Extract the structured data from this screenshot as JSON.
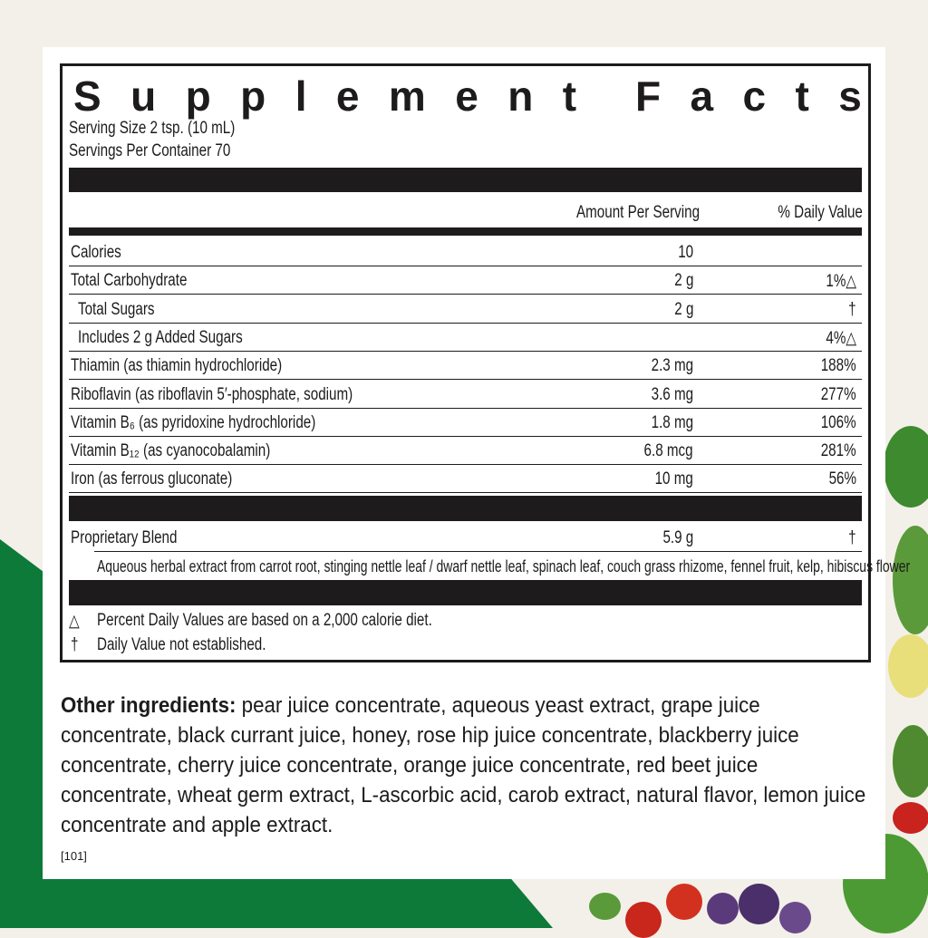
{
  "title": "Supplement Facts",
  "title_letters": [
    "S",
    "u",
    "p",
    "p",
    "l",
    "e",
    "m",
    "e",
    "n",
    "t",
    "",
    "F",
    "a",
    "c",
    "t",
    "s"
  ],
  "serving_size": "Serving Size 2 tsp. (10 mL)",
  "servings_per_container": "Servings Per Container 70",
  "header": {
    "amount": "Amount Per Serving",
    "dv": "% Daily Value"
  },
  "rows": [
    {
      "name": "Calories",
      "amount": "10",
      "dv": ""
    },
    {
      "name": "Total Carbohydrate",
      "amount": "2 g",
      "dv": "1%△"
    },
    {
      "name": "Total Sugars",
      "amount": "2 g",
      "dv": "†"
    },
    {
      "name": "Includes 2 g Added Sugars",
      "amount": "",
      "dv": "4%△"
    },
    {
      "name": "Thiamin (as thiamin hydrochloride)",
      "amount": "2.3 mg",
      "dv": "188%"
    },
    {
      "name": "Riboflavin (as riboflavin 5′-phosphate, sodium)",
      "amount": "3.6 mg",
      "dv": "277%"
    },
    {
      "name": "Vitamin B₆ (as pyridoxine hydrochloride)",
      "amount": "1.8 mg",
      "dv": "106%"
    },
    {
      "name": "Vitamin B₁₂ (as cyanocobalamin)",
      "amount": "6.8 mcg",
      "dv": "281%"
    },
    {
      "name": "Iron (as ferrous gluconate)",
      "amount": "10 mg",
      "dv": "56%"
    }
  ],
  "blend": {
    "name": "Proprietary Blend",
    "amount": "5.9 g",
    "dv": "†",
    "description": "Aqueous herbal extract from carrot root, stinging nettle leaf / dwarf nettle leaf, spinach leaf, couch grass rhizome, fennel fruit, kelp, hibiscus flower"
  },
  "footnotes": [
    {
      "symbol": "△",
      "text": "Percent Daily Values are based on a 2,000 calorie diet."
    },
    {
      "symbol": "†",
      "text": "Daily Value not established."
    }
  ],
  "other_ingredients": {
    "label": "Other ingredients:",
    "text": " pear juice concentrate, aqueous yeast extract, grape juice concentrate, black currant juice, honey, rose hip juice concentrate, blackberry juice concentrate, cherry juice concentrate, orange juice concentrate, red beet juice concentrate, wheat germ extract, L-ascorbic acid, carob extract, natural flavor, lemon juice concentrate and apple extract."
  },
  "code": "[101]",
  "colors": {
    "brand_green": "#0d7a3a",
    "ink": "#1d1b1b"
  }
}
